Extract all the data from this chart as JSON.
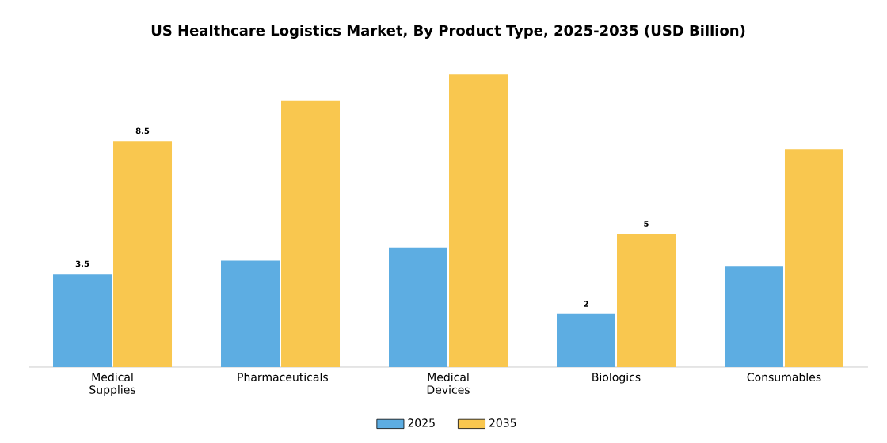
{
  "chart_data": {
    "type": "bar",
    "title": "US Healthcare Logistics Market, By Product Type, 2025-2035 (USD Billion)",
    "categories": [
      "Medical Supplies",
      "Pharmaceuticals",
      "Medical Devices",
      "Biologics",
      "Consumables"
    ],
    "series": [
      {
        "name": "2025",
        "color": "#5dade2",
        "values": [
          3.5,
          4.0,
          4.5,
          2,
          3.8
        ],
        "value_labels": [
          "3.5",
          null,
          null,
          "2",
          null
        ]
      },
      {
        "name": "2035",
        "color": "#f9c74f",
        "values": [
          8.5,
          10.0,
          11.0,
          5,
          8.2
        ],
        "value_labels": [
          "8.5",
          null,
          null,
          "5",
          null
        ]
      }
    ],
    "legend": "bottom"
  }
}
